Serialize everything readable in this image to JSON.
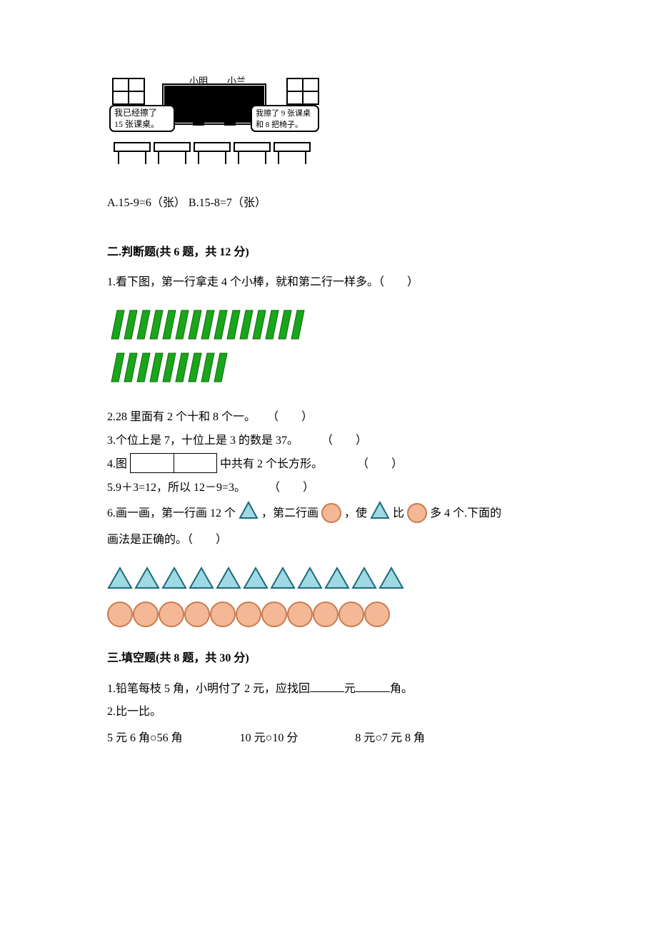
{
  "illustration": {
    "labels": {
      "left_name": "小明",
      "right_name": "小兰"
    },
    "speech": {
      "left_line1": "我已经擦了",
      "left_line2": "15 张课桌。",
      "right_line1": "我擦了 9 张课桌",
      "right_line2": "和 8 把椅子。"
    }
  },
  "mc_answers": "A.15-9=6（张）  B.15-8=7（张）",
  "section2": {
    "header": "二.判断题(共 6 题，共 12 分)",
    "q1": "1.看下图，第一行拿走 4 个小棒，就和第二行一样多。（　　）",
    "sticks": {
      "row1_count": 15,
      "row2_count": 9,
      "stick_color": "#1aa61a",
      "width": 10,
      "height": 40,
      "gap": 8,
      "slant": 8
    },
    "q2": "2.28 里面有 2 个十和 8 个一。　　（　　）",
    "q3": "3.个位上是 7，十位上是 3 的数是 37。　　　（　　）",
    "q4_a": "4.图",
    "q4_b": "中共有 2 个长方形。　　　　（　　）",
    "q5": "5.9＋3=12，所以 12－9=3。　　　（　　）",
    "q6_a": "6.画一画，第一行画 12 个",
    "q6_b": "，第二行画",
    "q6_c": "，使",
    "q6_d": "比",
    "q6_e": "多 4 个.下面的",
    "q6_f": "画法是正确的。（　　）",
    "shapes": {
      "triangles_count": 11,
      "circles_count": 11,
      "triangle_fill": "#9fd9e4",
      "triangle_stroke": "#1a6b7a",
      "circle_fill": "#f5b896",
      "circle_stroke": "#c97a4e"
    }
  },
  "section3": {
    "header": "三.填空题(共 8 题，共 30 分)",
    "q1_a": "1.铅笔每枝 5 角，小明付了 2 元，应找回",
    "q1_unit1": "元",
    "q1_unit2": "角。",
    "q2": "2.比一比。",
    "compare": {
      "c1": "5 元 6 角○56 角",
      "c2": "10 元○10 分",
      "c3": "8 元○7 元 8 角"
    }
  }
}
